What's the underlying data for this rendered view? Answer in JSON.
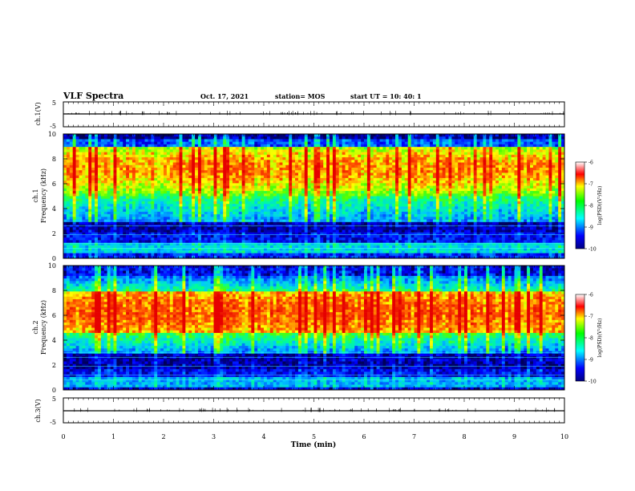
{
  "header": {
    "title": "VLF Spectra",
    "date": "Oct. 17, 2021",
    "station": "station= MOS",
    "start": "start  UT  =   10: 40: 1"
  },
  "chart_data": [
    {
      "type": "line",
      "panel": "ch1-waveform",
      "ylabel": "ch.1(V)",
      "ylim": [
        -5,
        5
      ],
      "yticks": [
        "5",
        "-5"
      ],
      "values_note": "",
      "baseline": 0
    },
    {
      "type": "heatmap",
      "panel": "ch1-spectrogram",
      "ylabel_line1": "ch.1",
      "ylabel_line2": "Frequency (kHz)",
      "ylim": [
        0,
        10
      ],
      "yticks": [
        "0",
        "2",
        "4",
        "6",
        "8",
        "10"
      ],
      "colorbar": {
        "label": "log(PSD)(V²/Hz)",
        "range": [
          -10,
          -6
        ],
        "ticks": [
          "-6",
          "-7",
          "-8",
          "-9",
          "-10"
        ]
      },
      "intense_band_khz": [
        5.5,
        9.0
      ],
      "quiet_band_khz": [
        2.0,
        3.0
      ]
    },
    {
      "type": "heatmap",
      "panel": "ch2-spectrogram",
      "ylabel_line1": "ch.2",
      "ylabel_line2": "Frequency (kHz)",
      "ylim": [
        0,
        10
      ],
      "yticks": [
        "0",
        "2",
        "4",
        "6",
        "8",
        "10"
      ],
      "colorbar": {
        "label": "log(PSD)(V²/Hz)",
        "range": [
          -10,
          -6
        ],
        "ticks": [
          "-6",
          "-7",
          "-8",
          "-9",
          "-10"
        ]
      },
      "intense_band_khz": [
        5.0,
        8.0
      ],
      "quiet_band_khz": [
        1.5,
        3.0
      ]
    },
    {
      "type": "line",
      "panel": "ch3-waveform",
      "ylabel": "ch.3(V)",
      "ylim": [
        -5,
        5
      ],
      "yticks": [
        "5",
        "-5"
      ],
      "baseline": 0,
      "xlabel": "Time (min)",
      "xlim": [
        0,
        10
      ],
      "xticks": [
        "0",
        "1",
        "2",
        "3",
        "4",
        "5",
        "6",
        "7",
        "8",
        "9",
        "10"
      ]
    }
  ]
}
